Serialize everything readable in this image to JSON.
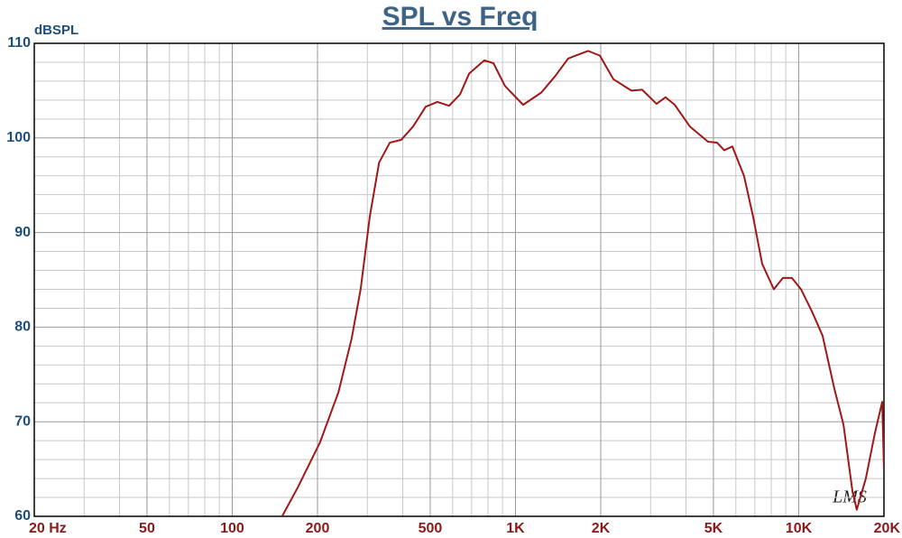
{
  "chart_data": {
    "type": "line",
    "title": "SPL vs Freq",
    "y_label": "dBSPL",
    "watermark": "LMS",
    "x_scale": "log",
    "grid": true,
    "xlim": [
      20,
      20000
    ],
    "ylim": [
      60,
      110
    ],
    "xticks": [
      {
        "value": 20,
        "label": "20 Hz"
      },
      50,
      100,
      200,
      500,
      {
        "value": 1000,
        "label": "1K"
      },
      {
        "value": 2000,
        "label": "2K"
      },
      {
        "value": 5000,
        "label": "5K"
      },
      {
        "value": 10000,
        "label": "10K"
      },
      {
        "value": 20000,
        "label": "20K"
      }
    ],
    "yticks": [
      60,
      70,
      80,
      90,
      100,
      110
    ],
    "x_minor_ticks": [
      30,
      40,
      60,
      70,
      80,
      90,
      300,
      400,
      600,
      700,
      800,
      900,
      3000,
      4000,
      6000,
      7000,
      8000,
      9000
    ],
    "y_minor_ticks": [
      62,
      64,
      66,
      68,
      72,
      74,
      76,
      78,
      82,
      84,
      86,
      88,
      92,
      94,
      96,
      98,
      102,
      104,
      106,
      108
    ],
    "series": [
      {
        "name": "SPL",
        "color": "#a01818",
        "x": [
          150,
          170,
          204,
          237,
          264,
          284,
          306,
          330,
          360,
          395,
          435,
          482,
          530,
          583,
          637,
          686,
          776,
          836,
          918,
          1064,
          1234,
          1378,
          1536,
          1804,
          1986,
          2218,
          2566,
          2800,
          3148,
          3389,
          3650,
          4130,
          4785,
          5150,
          5460,
          5830,
          6410,
          6900,
          7430,
          8170,
          8790,
          9460,
          10190,
          11120,
          12140,
          13360,
          14390,
          15490,
          16030,
          17260,
          18580,
          19720,
          20000
        ],
        "values": [
          60,
          63,
          67.8,
          73.1,
          78.8,
          84,
          91.7,
          97.4,
          99.5,
          99.8,
          101.2,
          103.3,
          103.8,
          103.4,
          104.6,
          106.8,
          108.2,
          107.9,
          105.5,
          103.5,
          104.8,
          106.5,
          108.4,
          109.2,
          108.7,
          106.2,
          105,
          105.1,
          103.6,
          104.3,
          103.5,
          101.2,
          99.6,
          99.5,
          98.7,
          99.1,
          96,
          91.7,
          86.7,
          84,
          85.2,
          85.2,
          84,
          81.7,
          79.1,
          73.5,
          69.7,
          62.6,
          60.7,
          64,
          68.8,
          72.1,
          65
        ]
      }
    ]
  }
}
